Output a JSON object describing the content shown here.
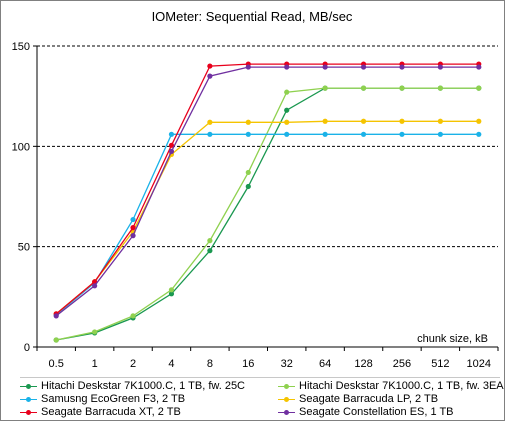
{
  "chart_data": {
    "type": "line",
    "title": "IOMeter: Sequential Read, MB/sec",
    "xlabel": "chunk size, kB",
    "ylabel": "",
    "categories": [
      "0.5",
      "1",
      "2",
      "4",
      "8",
      "16",
      "32",
      "64",
      "128",
      "256",
      "512",
      "1024"
    ],
    "ylim": [
      0,
      150
    ],
    "yticks": [
      0,
      50,
      100,
      150
    ],
    "grid": "horizontal dashed",
    "legend_position": "bottom",
    "series": [
      {
        "name": "Hitachi Deskstar 7K1000.C, 1 TB, fw. 25C",
        "color": "#1a9850",
        "values": [
          3.5,
          7,
          14.5,
          26.5,
          48,
          80,
          118,
          129,
          129,
          129,
          129,
          129
        ]
      },
      {
        "name": "Hitachi Deskstar 7K1000.C, 1 TB, fw. 3EA",
        "color": "#8fd14f",
        "values": [
          3.5,
          7.5,
          15.5,
          28.5,
          53,
          87,
          127,
          129,
          129,
          129,
          129,
          129
        ]
      },
      {
        "name": "Samusng EcoGreen F3, 2 TB",
        "color": "#1ab2e8",
        "values": [
          16,
          32,
          63.5,
          106,
          106,
          106,
          106,
          106,
          106,
          106,
          106,
          106
        ]
      },
      {
        "name": "Seagate Barracuda LP, 2 TB",
        "color": "#f5c400",
        "values": [
          16.5,
          32.5,
          57.5,
          96,
          112,
          112,
          112,
          112.5,
          112.5,
          112.5,
          112.5,
          112.5
        ]
      },
      {
        "name": "Seagate Barracuda XT, 2 TB",
        "color": "#e8001c",
        "values": [
          16.5,
          32.5,
          59.5,
          100.5,
          140,
          141,
          141,
          141,
          141,
          141,
          141,
          141
        ]
      },
      {
        "name": "Seagate Constellation ES, 1 TB",
        "color": "#7030a0",
        "values": [
          15.5,
          30.5,
          55.5,
          97.5,
          135,
          139.5,
          139.5,
          139.5,
          139.5,
          139.5,
          139.5,
          139.5
        ]
      }
    ]
  }
}
